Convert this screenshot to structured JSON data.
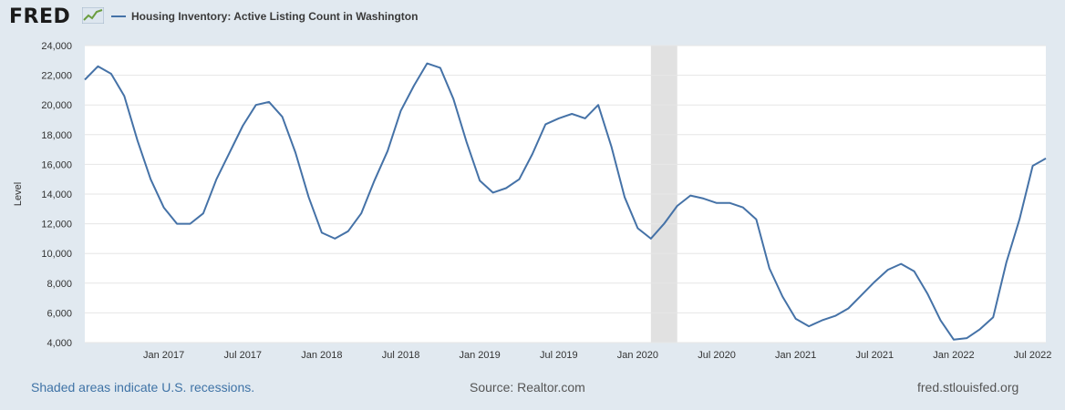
{
  "header": {
    "logo_text": "FRED",
    "legend_label": "Housing Inventory: Active Listing Count in Washington",
    "series_color": "#4572a7"
  },
  "footer": {
    "recession_note": "Shaded areas indicate U.S. recessions.",
    "source": "Source: Realtor.com",
    "site": "fred.stlouisfed.org"
  },
  "chart_data": {
    "type": "line",
    "title": "",
    "xlabel": "",
    "ylabel": "Level",
    "ylim": [
      4000,
      24000
    ],
    "y_ticks": [
      4000,
      6000,
      8000,
      10000,
      12000,
      14000,
      16000,
      18000,
      20000,
      22000,
      24000
    ],
    "y_tick_labels": [
      "4,000",
      "6,000",
      "8,000",
      "10,000",
      "12,000",
      "14,000",
      "16,000",
      "18,000",
      "20,000",
      "22,000",
      "24,000"
    ],
    "x_range": [
      "2016-07",
      "2022-08"
    ],
    "x_ticks": [
      {
        "date": "2017-01",
        "label": "Jan 2017"
      },
      {
        "date": "2017-07",
        "label": "Jul 2017"
      },
      {
        "date": "2018-01",
        "label": "Jan 2018"
      },
      {
        "date": "2018-07",
        "label": "Jul 2018"
      },
      {
        "date": "2019-01",
        "label": "Jan 2019"
      },
      {
        "date": "2019-07",
        "label": "Jul 2019"
      },
      {
        "date": "2020-01",
        "label": "Jan 2020"
      },
      {
        "date": "2020-07",
        "label": "Jul 2020"
      },
      {
        "date": "2021-01",
        "label": "Jan 2021"
      },
      {
        "date": "2021-07",
        "label": "Jul 2021"
      },
      {
        "date": "2022-01",
        "label": "Jan 2022"
      },
      {
        "date": "2022-07",
        "label": "Jul 2022"
      }
    ],
    "recessions": [
      {
        "start": "2020-02",
        "end": "2020-04"
      }
    ],
    "grid": true,
    "legend": "top-left",
    "series": [
      {
        "name": "Housing Inventory: Active Listing Count in Washington",
        "color": "#4572a7",
        "x": [
          "2016-07",
          "2016-08",
          "2016-09",
          "2016-10",
          "2016-11",
          "2016-12",
          "2017-01",
          "2017-02",
          "2017-03",
          "2017-04",
          "2017-05",
          "2017-06",
          "2017-07",
          "2017-08",
          "2017-09",
          "2017-10",
          "2017-11",
          "2017-12",
          "2018-01",
          "2018-02",
          "2018-03",
          "2018-04",
          "2018-05",
          "2018-06",
          "2018-07",
          "2018-08",
          "2018-09",
          "2018-10",
          "2018-11",
          "2018-12",
          "2019-01",
          "2019-02",
          "2019-03",
          "2019-04",
          "2019-05",
          "2019-06",
          "2019-07",
          "2019-08",
          "2019-09",
          "2019-10",
          "2019-11",
          "2019-12",
          "2020-01",
          "2020-02",
          "2020-03",
          "2020-04",
          "2020-05",
          "2020-06",
          "2020-07",
          "2020-08",
          "2020-09",
          "2020-10",
          "2020-11",
          "2020-12",
          "2021-01",
          "2021-02",
          "2021-03",
          "2021-04",
          "2021-05",
          "2021-06",
          "2021-07",
          "2021-08",
          "2021-09",
          "2021-10",
          "2021-11",
          "2021-12",
          "2022-01",
          "2022-02",
          "2022-03",
          "2022-04",
          "2022-05",
          "2022-06",
          "2022-07",
          "2022-08"
        ],
        "values": [
          21700,
          22600,
          22100,
          20600,
          17600,
          15000,
          13100,
          12000,
          12000,
          12700,
          15000,
          16800,
          18600,
          20000,
          20200,
          19200,
          16800,
          13800,
          11400,
          11000,
          11500,
          12700,
          14900,
          16900,
          19600,
          21300,
          22800,
          22500,
          20400,
          17500,
          14900,
          14100,
          14400,
          15000,
          16700,
          18700,
          19100,
          19400,
          19100,
          20000,
          17200,
          13800,
          11700,
          11000,
          12000,
          13200,
          13900,
          13700,
          13400,
          13400,
          13100,
          12300,
          9000,
          7100,
          5600,
          5100,
          5500,
          5800,
          6300,
          7200,
          8100,
          8900,
          9300,
          8800,
          7300,
          5500,
          4200,
          4300,
          4900,
          5700,
          9400,
          12300,
          15900,
          16400
        ]
      }
    ]
  }
}
